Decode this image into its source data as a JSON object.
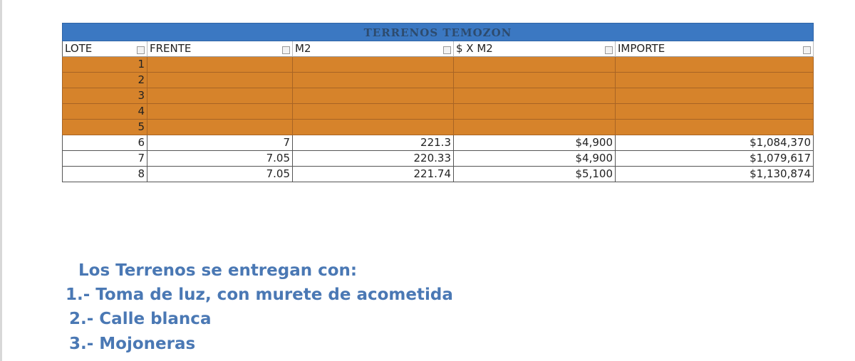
{
  "table": {
    "title": "TERRENOS TEMOZON",
    "headers": [
      "LOTE",
      "FRENTE",
      "M2",
      "$ X M2",
      "IMPORTE"
    ],
    "rows": [
      [
        "1"
      ],
      [
        "2"
      ],
      [
        "3"
      ],
      [
        "4"
      ],
      [
        "5"
      ],
      [
        "6",
        "7",
        "221.3",
        "$4,900",
        "$1,084,370"
      ],
      [
        "7",
        "7.05",
        "220.33",
        "$4,900",
        "$1,079,617"
      ],
      [
        "8",
        "7.05",
        "221.74",
        "$5,100",
        "$1,130,874"
      ]
    ]
  },
  "notes": {
    "heading": "Los Terrenos se entregan con:",
    "items": [
      "1.- Toma de luz, con murete de acometida",
      "2.- Calle blanca",
      "3.- Mojoneras"
    ]
  }
}
